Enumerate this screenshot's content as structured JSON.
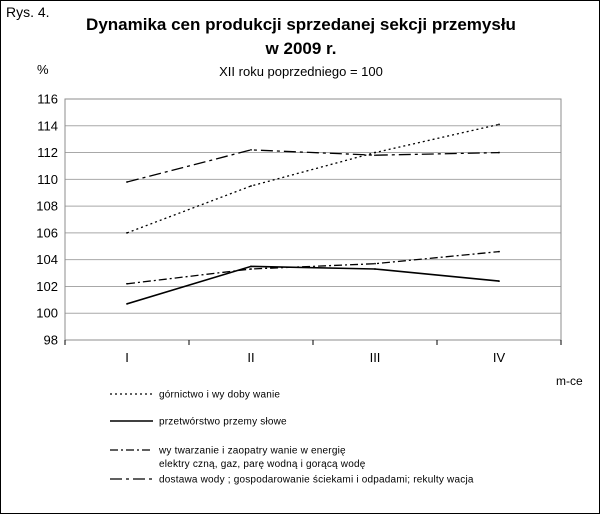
{
  "figure_label": "Rys. 4.",
  "chart_data": {
    "type": "line",
    "title": "Dynamika cen produkcji sprzedanej sekcji przemysłu",
    "title_line2": "w 2009 r.",
    "subtitle": "XII roku poprzedniego = 100",
    "ylabel": "%",
    "xlabel": "m-ce",
    "categories": [
      "I",
      "II",
      "III",
      "IV"
    ],
    "ylim": [
      98,
      116
    ],
    "yticks": [
      98,
      100,
      102,
      104,
      106,
      108,
      110,
      112,
      114,
      116
    ],
    "grid": true,
    "legend_position": "bottom",
    "series": [
      {
        "name": "górnictwo i wy doby wanie",
        "name_line2": "",
        "style": "dotted",
        "values": [
          106.0,
          109.5,
          112.0,
          114.1
        ]
      },
      {
        "name": "przetwórstwo przemy słowe",
        "name_line2": "",
        "style": "solid",
        "values": [
          100.7,
          103.5,
          103.3,
          102.4
        ]
      },
      {
        "name": "wy twarzanie i zaopatry wanie w energię",
        "name_line2": "elektry czną, gaz, parę wodną i gorącą wodę",
        "style": "dashdot",
        "values": [
          102.2,
          103.3,
          103.7,
          104.6
        ]
      },
      {
        "name": "dostawa wody ; gospodarowanie ściekami i odpadami; rekulty wacja",
        "name_line2": "",
        "style": "dashdotlong",
        "values": [
          109.8,
          112.2,
          111.8,
          112.0
        ]
      }
    ]
  }
}
